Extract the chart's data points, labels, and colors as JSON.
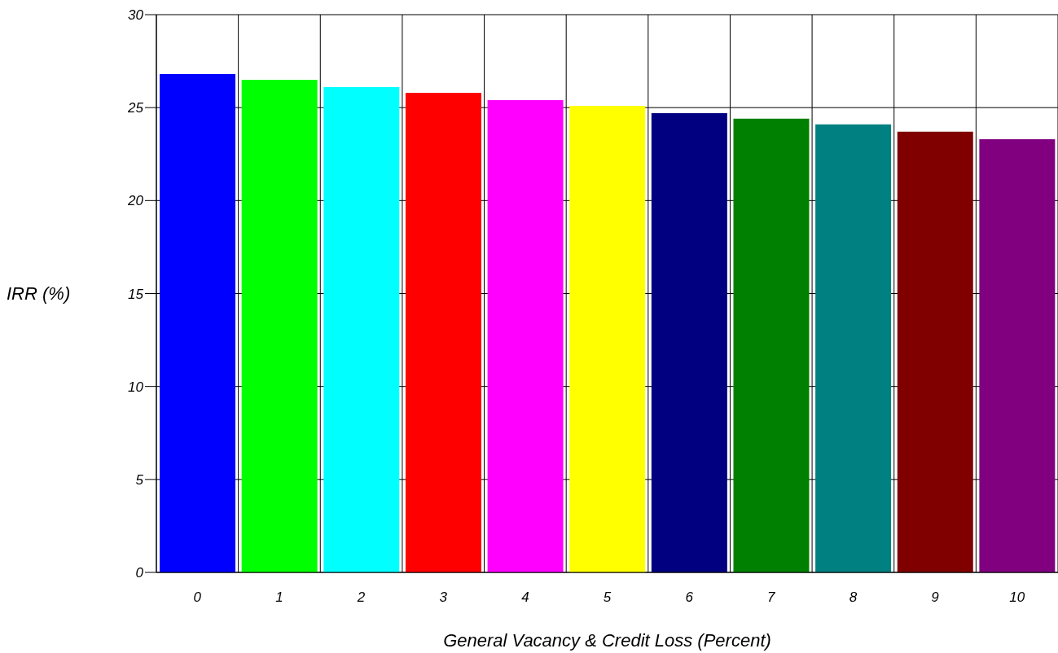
{
  "chart_data": {
    "type": "bar",
    "xlabel": "General Vacancy & Credit Loss (Percent)",
    "ylabel": "IRR (%)",
    "categories": [
      "0",
      "1",
      "2",
      "3",
      "4",
      "5",
      "6",
      "7",
      "8",
      "9",
      "10"
    ],
    "values": [
      26.8,
      26.5,
      26.1,
      25.8,
      25.4,
      25.1,
      24.7,
      24.4,
      24.1,
      23.7,
      23.3
    ],
    "colors": [
      "#0000ff",
      "#00ff00",
      "#00ffff",
      "#ff0000",
      "#ff00ff",
      "#ffff00",
      "#000080",
      "#008000",
      "#008080",
      "#800000",
      "#800080"
    ],
    "ylim": [
      0,
      30
    ],
    "yticks": [
      0,
      5,
      10,
      15,
      20,
      25,
      30
    ],
    "grid": true
  }
}
